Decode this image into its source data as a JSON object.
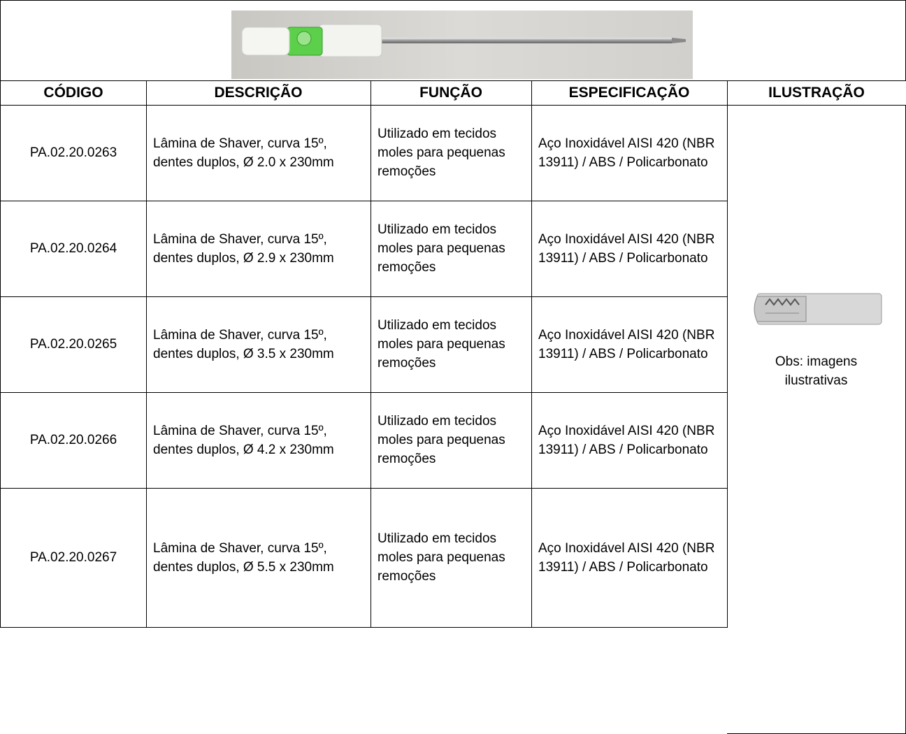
{
  "table": {
    "headers": [
      "CÓDIGO",
      "DESCRIÇÃO",
      "FUNÇÃO",
      "ESPECIFICAÇÃO",
      "ILUSTRAÇÃO"
    ],
    "rows": [
      [
        "PA.02.20.0263",
        "Lâmina de Shaver, curva 15º, dentes duplos, Ø 2.0 x 230mm",
        "Utilizado em tecidos moles para pequenas remoções",
        "Aço Inoxidável AISI 420 (NBR 13911) / ABS / Policarbonato"
      ],
      [
        "PA.02.20.0264",
        "Lâmina de Shaver, curva 15º, dentes duplos, Ø 2.9 x 230mm",
        "Utilizado em tecidos moles para pequenas remoções",
        "Aço Inoxidável AISI 420 (NBR 13911) / ABS / Policarbonato"
      ],
      [
        "PA.02.20.0265",
        "Lâmina de Shaver, curva 15º, dentes duplos, Ø 3.5 x 230mm",
        "Utilizado em tecidos moles para pequenas remoções",
        "Aço Inoxidável AISI 420 (NBR 13911) / ABS / Policarbonato"
      ],
      [
        "PA.02.20.0266",
        "Lâmina de Shaver, curva 15º, dentes duplos, Ø 4.2 x 230mm",
        "Utilizado em tecidos moles para pequenas remoções",
        "Aço Inoxidável AISI 420 (NBR 13911) / ABS / Policarbonato"
      ],
      [
        "PA.02.20.0267",
        "Lâmina de Shaver, curva 15º, dentes duplos, Ø 5.5 x 230mm",
        "Utilizado em tecidos moles para pequenas remoções",
        "Aço Inoxidável AISI 420 (NBR 13911) / ABS / Policarbonato"
      ]
    ],
    "illustration_note": "Obs: imagens ilustrativas"
  }
}
